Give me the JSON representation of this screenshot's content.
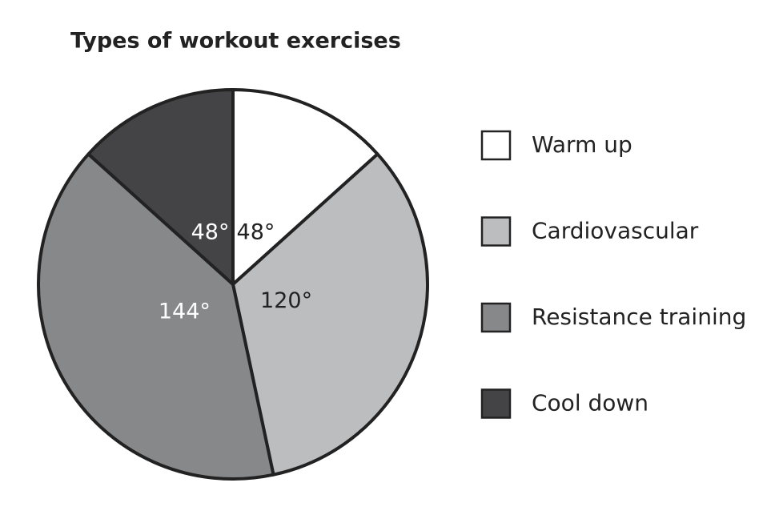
{
  "chart_data": {
    "type": "pie",
    "title": "Types of workout exercises",
    "categories": [
      "Warm up",
      "Cardiovascular",
      "Resistance training",
      "Cool down"
    ],
    "values": [
      48,
      120,
      144,
      48
    ],
    "value_labels": [
      "48°",
      "120°",
      "144°",
      "48°"
    ],
    "colors": [
      "#ffffff",
      "#bcbdbf",
      "#87888a",
      "#444446"
    ],
    "legend": "right"
  }
}
